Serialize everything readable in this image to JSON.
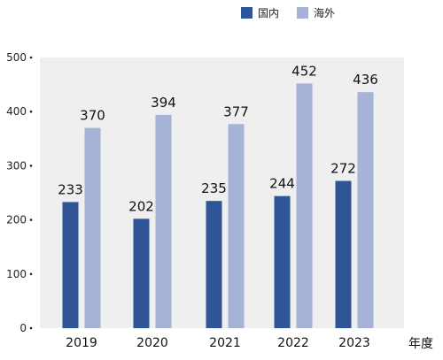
{
  "chart_data": {
    "type": "bar",
    "categories": [
      "2019",
      "2020",
      "2021",
      "2022",
      "2023"
    ],
    "series": [
      {
        "name": "国内",
        "values": [
          233,
          202,
          235,
          244,
          272
        ],
        "color": "#2f5597"
      },
      {
        "name": "海外",
        "values": [
          370,
          394,
          377,
          452,
          436
        ],
        "color": "#a6b2d6"
      }
    ],
    "xlabel": "年度",
    "ylabel": "",
    "ylim": [
      0,
      500
    ],
    "yticks": [
      0,
      100,
      200,
      300,
      400,
      500
    ],
    "plot_background": "#efefef",
    "legend_position": "top-right",
    "grid": false
  }
}
